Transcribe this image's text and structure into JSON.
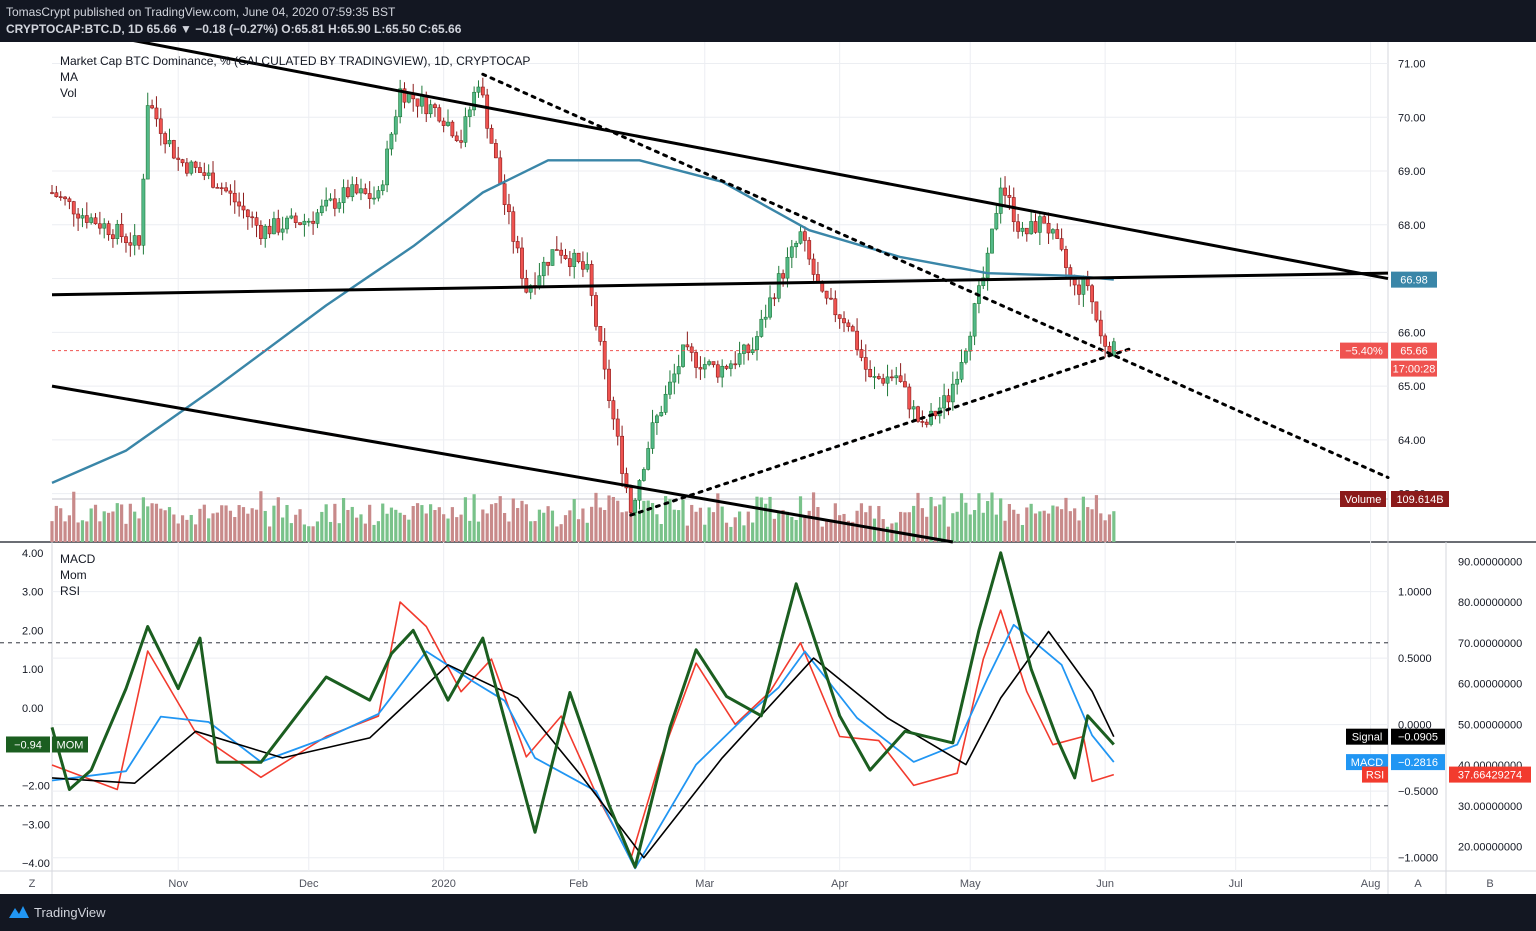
{
  "header": {
    "publisher_line": "TomasCrypt published on TradingView.com, June 04, 2020 07:59:35 BST",
    "symbol_line": "CRYPTOCAP:BTC.D, 1D 65.66 ▼ −0.18 (−0.27%) O:65.81 H:65.90 L:65.50 C:65.66"
  },
  "footer": {
    "brand": "TradingView"
  },
  "legend_main": [
    "Market Cap BTC Dominance, % (CALCULATED BY TRADINGVIEW), 1D, CRYPTOCAP",
    "MA",
    "Vol"
  ],
  "legend_ind": [
    "MACD",
    "Mom",
    "RSI"
  ],
  "colors": {
    "up": "#26a69a",
    "up_fill": "#53b987",
    "down": "#ef5350",
    "ma": "#3a86a8",
    "macd": "#2196f3",
    "signal": "#000000",
    "rsi": "#f23b2e",
    "mom": "#1b5e20",
    "vol_up": "#79c28a",
    "vol_down": "#c88a8a"
  },
  "chart_data": [
    {
      "type": "candlestick",
      "title": "Market Cap BTC Dominance, % (CALCULATED BY TRADINGVIEW), 1D, CRYPTOCAP",
      "x_tick_labels": [
        "Nov",
        "Dec",
        "2020",
        "Feb",
        "Mar",
        "Apr",
        "May",
        "Jun",
        "Jul",
        "Aug"
      ],
      "y_tick_labels": [
        "63.00",
        "64.00",
        "65.00",
        "66.00",
        "67.00",
        "68.00",
        "69.00",
        "70.00",
        "71.00"
      ],
      "ylim": [
        62.1,
        71.4
      ],
      "x_start": "2019-10-03",
      "last": {
        "open": 65.81,
        "high": 65.9,
        "low": 65.5,
        "close": 65.66,
        "change": -0.18,
        "change_pct": -0.27
      },
      "price_label": "65.66",
      "price_change_label": "−5.40%",
      "countdown_label": "17:00:28",
      "ma_label": "66.98",
      "volume_label": "Volume",
      "volume_value_label": "109.614B",
      "close_series": [
        {
          "date": "2019-10-03",
          "value": 68.6
        },
        {
          "date": "2019-10-10",
          "value": 68.2
        },
        {
          "date": "2019-10-17",
          "value": 67.9
        },
        {
          "date": "2019-10-23",
          "value": 67.6
        },
        {
          "date": "2019-10-25",
          "value": 70.3
        },
        {
          "date": "2019-11-01",
          "value": 69.2
        },
        {
          "date": "2019-11-10",
          "value": 68.8
        },
        {
          "date": "2019-11-20",
          "value": 67.9
        },
        {
          "date": "2019-12-01",
          "value": 68.1
        },
        {
          "date": "2019-12-10",
          "value": 68.6
        },
        {
          "date": "2019-12-17",
          "value": 68.5
        },
        {
          "date": "2019-12-22",
          "value": 70.5
        },
        {
          "date": "2019-12-31",
          "value": 70.1
        },
        {
          "date": "2020-01-05",
          "value": 69.6
        },
        {
          "date": "2020-01-09",
          "value": 70.7
        },
        {
          "date": "2020-01-15",
          "value": 68.4
        },
        {
          "date": "2020-01-20",
          "value": 66.8
        },
        {
          "date": "2020-01-27",
          "value": 67.6
        },
        {
          "date": "2020-02-03",
          "value": 67.1
        },
        {
          "date": "2020-02-07",
          "value": 65.2
        },
        {
          "date": "2020-02-13",
          "value": 62.7
        },
        {
          "date": "2020-02-18",
          "value": 64.2
        },
        {
          "date": "2020-02-25",
          "value": 65.6
        },
        {
          "date": "2020-03-04",
          "value": 65.3
        },
        {
          "date": "2020-03-12",
          "value": 65.7
        },
        {
          "date": "2020-03-17",
          "value": 66.8
        },
        {
          "date": "2020-03-23",
          "value": 67.8
        },
        {
          "date": "2020-03-28",
          "value": 66.6
        },
        {
          "date": "2020-04-03",
          "value": 66.2
        },
        {
          "date": "2020-04-08",
          "value": 65.1
        },
        {
          "date": "2020-04-14",
          "value": 65.2
        },
        {
          "date": "2020-04-20",
          "value": 64.2
        },
        {
          "date": "2020-04-26",
          "value": 64.8
        },
        {
          "date": "2020-04-30",
          "value": 65.8
        },
        {
          "date": "2020-05-05",
          "value": 67.3
        },
        {
          "date": "2020-05-08",
          "value": 68.8
        },
        {
          "date": "2020-05-13",
          "value": 67.8
        },
        {
          "date": "2020-05-18",
          "value": 68.1
        },
        {
          "date": "2020-05-22",
          "value": 67.4
        },
        {
          "date": "2020-05-25",
          "value": 66.8
        },
        {
          "date": "2020-05-28",
          "value": 66.9
        },
        {
          "date": "2020-05-31",
          "value": 65.9
        },
        {
          "date": "2020-06-03",
          "value": 65.66
        }
      ],
      "ma_series": [
        {
          "date": "2019-10-03",
          "value": 63.2
        },
        {
          "date": "2019-10-20",
          "value": 63.8
        },
        {
          "date": "2019-11-10",
          "value": 65.0
        },
        {
          "date": "2019-12-05",
          "value": 66.5
        },
        {
          "date": "2019-12-25",
          "value": 67.6
        },
        {
          "date": "2020-01-10",
          "value": 68.6
        },
        {
          "date": "2020-01-25",
          "value": 69.2
        },
        {
          "date": "2020-02-15",
          "value": 69.2
        },
        {
          "date": "2020-03-05",
          "value": 68.8
        },
        {
          "date": "2020-03-25",
          "value": 67.9
        },
        {
          "date": "2020-04-15",
          "value": 67.4
        },
        {
          "date": "2020-05-05",
          "value": 67.1
        },
        {
          "date": "2020-05-25",
          "value": 67.05
        },
        {
          "date": "2020-06-03",
          "value": 66.98
        }
      ],
      "trendlines": [
        {
          "style": "solid",
          "from": {
            "date": "2019-10-17",
            "value": 71.5
          },
          "to": {
            "date": "2020-08-05",
            "value": 67.0
          }
        },
        {
          "style": "solid",
          "from": {
            "date": "2019-10-03",
            "value": 66.7
          },
          "to": {
            "date": "2020-08-05",
            "value": 67.1
          }
        },
        {
          "style": "solid",
          "from": {
            "date": "2019-10-03",
            "value": 65.0
          },
          "to": {
            "date": "2020-04-27",
            "value": 62.1
          }
        },
        {
          "style": "dotted",
          "from": {
            "date": "2020-01-10",
            "value": 70.8
          },
          "to": {
            "date": "2020-08-05",
            "value": 63.3
          }
        },
        {
          "style": "dotted",
          "from": {
            "date": "2020-02-13",
            "value": 62.6
          },
          "to": {
            "date": "2020-06-07",
            "value": 65.7
          }
        }
      ],
      "volume": {
        "unit": "B",
        "last": 109.614
      }
    },
    {
      "type": "line",
      "series": [
        {
          "name": "MACD",
          "last_label": "−0.2816"
        },
        {
          "name": "Signal",
          "last_label": "−0.0905"
        },
        {
          "name": "MOM",
          "last_label": "−0.94"
        },
        {
          "name": "RSI",
          "last_label": "37.66429274"
        }
      ],
      "left_axis_labels": [
        "4.00",
        "3.00",
        "2.00",
        "1.00",
        "0.00",
        "−1.00",
        "−2.00",
        "−3.00",
        "−4.00"
      ],
      "macd_axis_labels": [
        "1.0000",
        "0.5000",
        "0.0000",
        "−0.5000",
        "−1.0000"
      ],
      "rsi_axis_labels": [
        "90.00000000",
        "80.00000000",
        "70.00000000",
        "60.00000000",
        "50.00000000",
        "40.00000000",
        "30.00000000",
        "20.00000000"
      ],
      "rsi_bands": [
        70,
        30
      ],
      "ylim_mom": [
        -4.2,
        4.2
      ],
      "ylim_macd": [
        -1.1,
        1.35
      ],
      "ylim_rsi": [
        14,
        94
      ],
      "rsi_series": [
        {
          "date": "2019-10-03",
          "value": 40
        },
        {
          "date": "2019-10-18",
          "value": 34
        },
        {
          "date": "2019-10-25",
          "value": 68
        },
        {
          "date": "2019-11-05",
          "value": 48
        },
        {
          "date": "2019-11-20",
          "value": 37
        },
        {
          "date": "2019-12-05",
          "value": 47
        },
        {
          "date": "2019-12-17",
          "value": 52
        },
        {
          "date": "2019-12-22",
          "value": 80
        },
        {
          "date": "2019-12-28",
          "value": 74
        },
        {
          "date": "2020-01-05",
          "value": 58
        },
        {
          "date": "2020-01-12",
          "value": 66
        },
        {
          "date": "2020-01-20",
          "value": 42
        },
        {
          "date": "2020-01-28",
          "value": 52
        },
        {
          "date": "2020-02-05",
          "value": 33
        },
        {
          "date": "2020-02-13",
          "value": 17
        },
        {
          "date": "2020-02-20",
          "value": 42
        },
        {
          "date": "2020-02-28",
          "value": 65
        },
        {
          "date": "2020-03-08",
          "value": 50
        },
        {
          "date": "2020-03-16",
          "value": 58
        },
        {
          "date": "2020-03-23",
          "value": 70
        },
        {
          "date": "2020-04-01",
          "value": 47
        },
        {
          "date": "2020-04-10",
          "value": 46
        },
        {
          "date": "2020-04-18",
          "value": 35
        },
        {
          "date": "2020-04-28",
          "value": 38
        },
        {
          "date": "2020-05-04",
          "value": 66
        },
        {
          "date": "2020-05-08",
          "value": 78
        },
        {
          "date": "2020-05-14",
          "value": 58
        },
        {
          "date": "2020-05-20",
          "value": 45
        },
        {
          "date": "2020-05-27",
          "value": 47
        },
        {
          "date": "2020-05-29",
          "value": 36
        },
        {
          "date": "2020-06-03",
          "value": 37.66
        }
      ],
      "macd_series": [
        {
          "date": "2019-10-03",
          "value": -0.42
        },
        {
          "date": "2019-10-20",
          "value": -0.35
        },
        {
          "date": "2019-10-28",
          "value": 0.06
        },
        {
          "date": "2019-11-08",
          "value": 0.02
        },
        {
          "date": "2019-11-20",
          "value": -0.28
        },
        {
          "date": "2019-12-05",
          "value": -0.1
        },
        {
          "date": "2019-12-17",
          "value": 0.08
        },
        {
          "date": "2019-12-28",
          "value": 0.55
        },
        {
          "date": "2020-01-08",
          "value": 0.32
        },
        {
          "date": "2020-01-15",
          "value": 0.18
        },
        {
          "date": "2020-01-22",
          "value": -0.25
        },
        {
          "date": "2020-02-05",
          "value": -0.5
        },
        {
          "date": "2020-02-14",
          "value": -1.08
        },
        {
          "date": "2020-02-28",
          "value": -0.3
        },
        {
          "date": "2020-03-10",
          "value": 0.05
        },
        {
          "date": "2020-03-18",
          "value": 0.28
        },
        {
          "date": "2020-03-24",
          "value": 0.55
        },
        {
          "date": "2020-04-05",
          "value": 0.05
        },
        {
          "date": "2020-04-18",
          "value": -0.28
        },
        {
          "date": "2020-04-28",
          "value": -0.15
        },
        {
          "date": "2020-05-05",
          "value": 0.35
        },
        {
          "date": "2020-05-11",
          "value": 0.75
        },
        {
          "date": "2020-05-22",
          "value": 0.45
        },
        {
          "date": "2020-05-29",
          "value": -0.08
        },
        {
          "date": "2020-06-03",
          "value": -0.2816
        }
      ],
      "signal_series": [
        {
          "date": "2019-10-03",
          "value": -0.4
        },
        {
          "date": "2019-10-22",
          "value": -0.44
        },
        {
          "date": "2019-11-05",
          "value": -0.05
        },
        {
          "date": "2019-11-25",
          "value": -0.25
        },
        {
          "date": "2019-12-15",
          "value": -0.1
        },
        {
          "date": "2020-01-02",
          "value": 0.45
        },
        {
          "date": "2020-01-18",
          "value": 0.2
        },
        {
          "date": "2020-02-02",
          "value": -0.4
        },
        {
          "date": "2020-02-16",
          "value": -1.0
        },
        {
          "date": "2020-03-05",
          "value": -0.25
        },
        {
          "date": "2020-03-26",
          "value": 0.5
        },
        {
          "date": "2020-04-12",
          "value": 0.05
        },
        {
          "date": "2020-04-30",
          "value": -0.3
        },
        {
          "date": "2020-05-08",
          "value": 0.2
        },
        {
          "date": "2020-05-19",
          "value": 0.7
        },
        {
          "date": "2020-05-29",
          "value": 0.25
        },
        {
          "date": "2020-06-03",
          "value": -0.0905
        }
      ],
      "mom_series": [
        {
          "date": "2019-10-03",
          "value": -0.5
        },
        {
          "date": "2019-10-07",
          "value": -2.1
        },
        {
          "date": "2019-10-12",
          "value": -1.6
        },
        {
          "date": "2019-10-20",
          "value": 0.5
        },
        {
          "date": "2019-10-25",
          "value": 2.1
        },
        {
          "date": "2019-11-01",
          "value": 0.5
        },
        {
          "date": "2019-11-06",
          "value": 1.8
        },
        {
          "date": "2019-11-10",
          "value": -1.4
        },
        {
          "date": "2019-11-20",
          "value": -1.4
        },
        {
          "date": "2019-12-05",
          "value": 0.8
        },
        {
          "date": "2019-12-15",
          "value": 0.2
        },
        {
          "date": "2019-12-20",
          "value": 1.4
        },
        {
          "date": "2019-12-25",
          "value": 2.0
        },
        {
          "date": "2020-01-02",
          "value": 0.2
        },
        {
          "date": "2020-01-10",
          "value": 1.8
        },
        {
          "date": "2020-01-15",
          "value": -0.3
        },
        {
          "date": "2020-01-22",
          "value": -3.2
        },
        {
          "date": "2020-01-30",
          "value": 0.4
        },
        {
          "date": "2020-02-08",
          "value": -2.5
        },
        {
          "date": "2020-02-14",
          "value": -4.1
        },
        {
          "date": "2020-02-22",
          "value": -0.5
        },
        {
          "date": "2020-02-28",
          "value": 1.5
        },
        {
          "date": "2020-03-06",
          "value": 0.3
        },
        {
          "date": "2020-03-14",
          "value": -0.2
        },
        {
          "date": "2020-03-22",
          "value": 3.2
        },
        {
          "date": "2020-04-01",
          "value": -0.2
        },
        {
          "date": "2020-04-08",
          "value": -1.6
        },
        {
          "date": "2020-04-16",
          "value": -0.6
        },
        {
          "date": "2020-04-27",
          "value": -0.9
        },
        {
          "date": "2020-05-03",
          "value": 2.0
        },
        {
          "date": "2020-05-08",
          "value": 4.0
        },
        {
          "date": "2020-05-15",
          "value": 1.0
        },
        {
          "date": "2020-05-21",
          "value": -0.8
        },
        {
          "date": "2020-05-25",
          "value": -1.8
        },
        {
          "date": "2020-05-28",
          "value": -0.2
        },
        {
          "date": "2020-06-03",
          "value": -0.94
        }
      ]
    }
  ]
}
